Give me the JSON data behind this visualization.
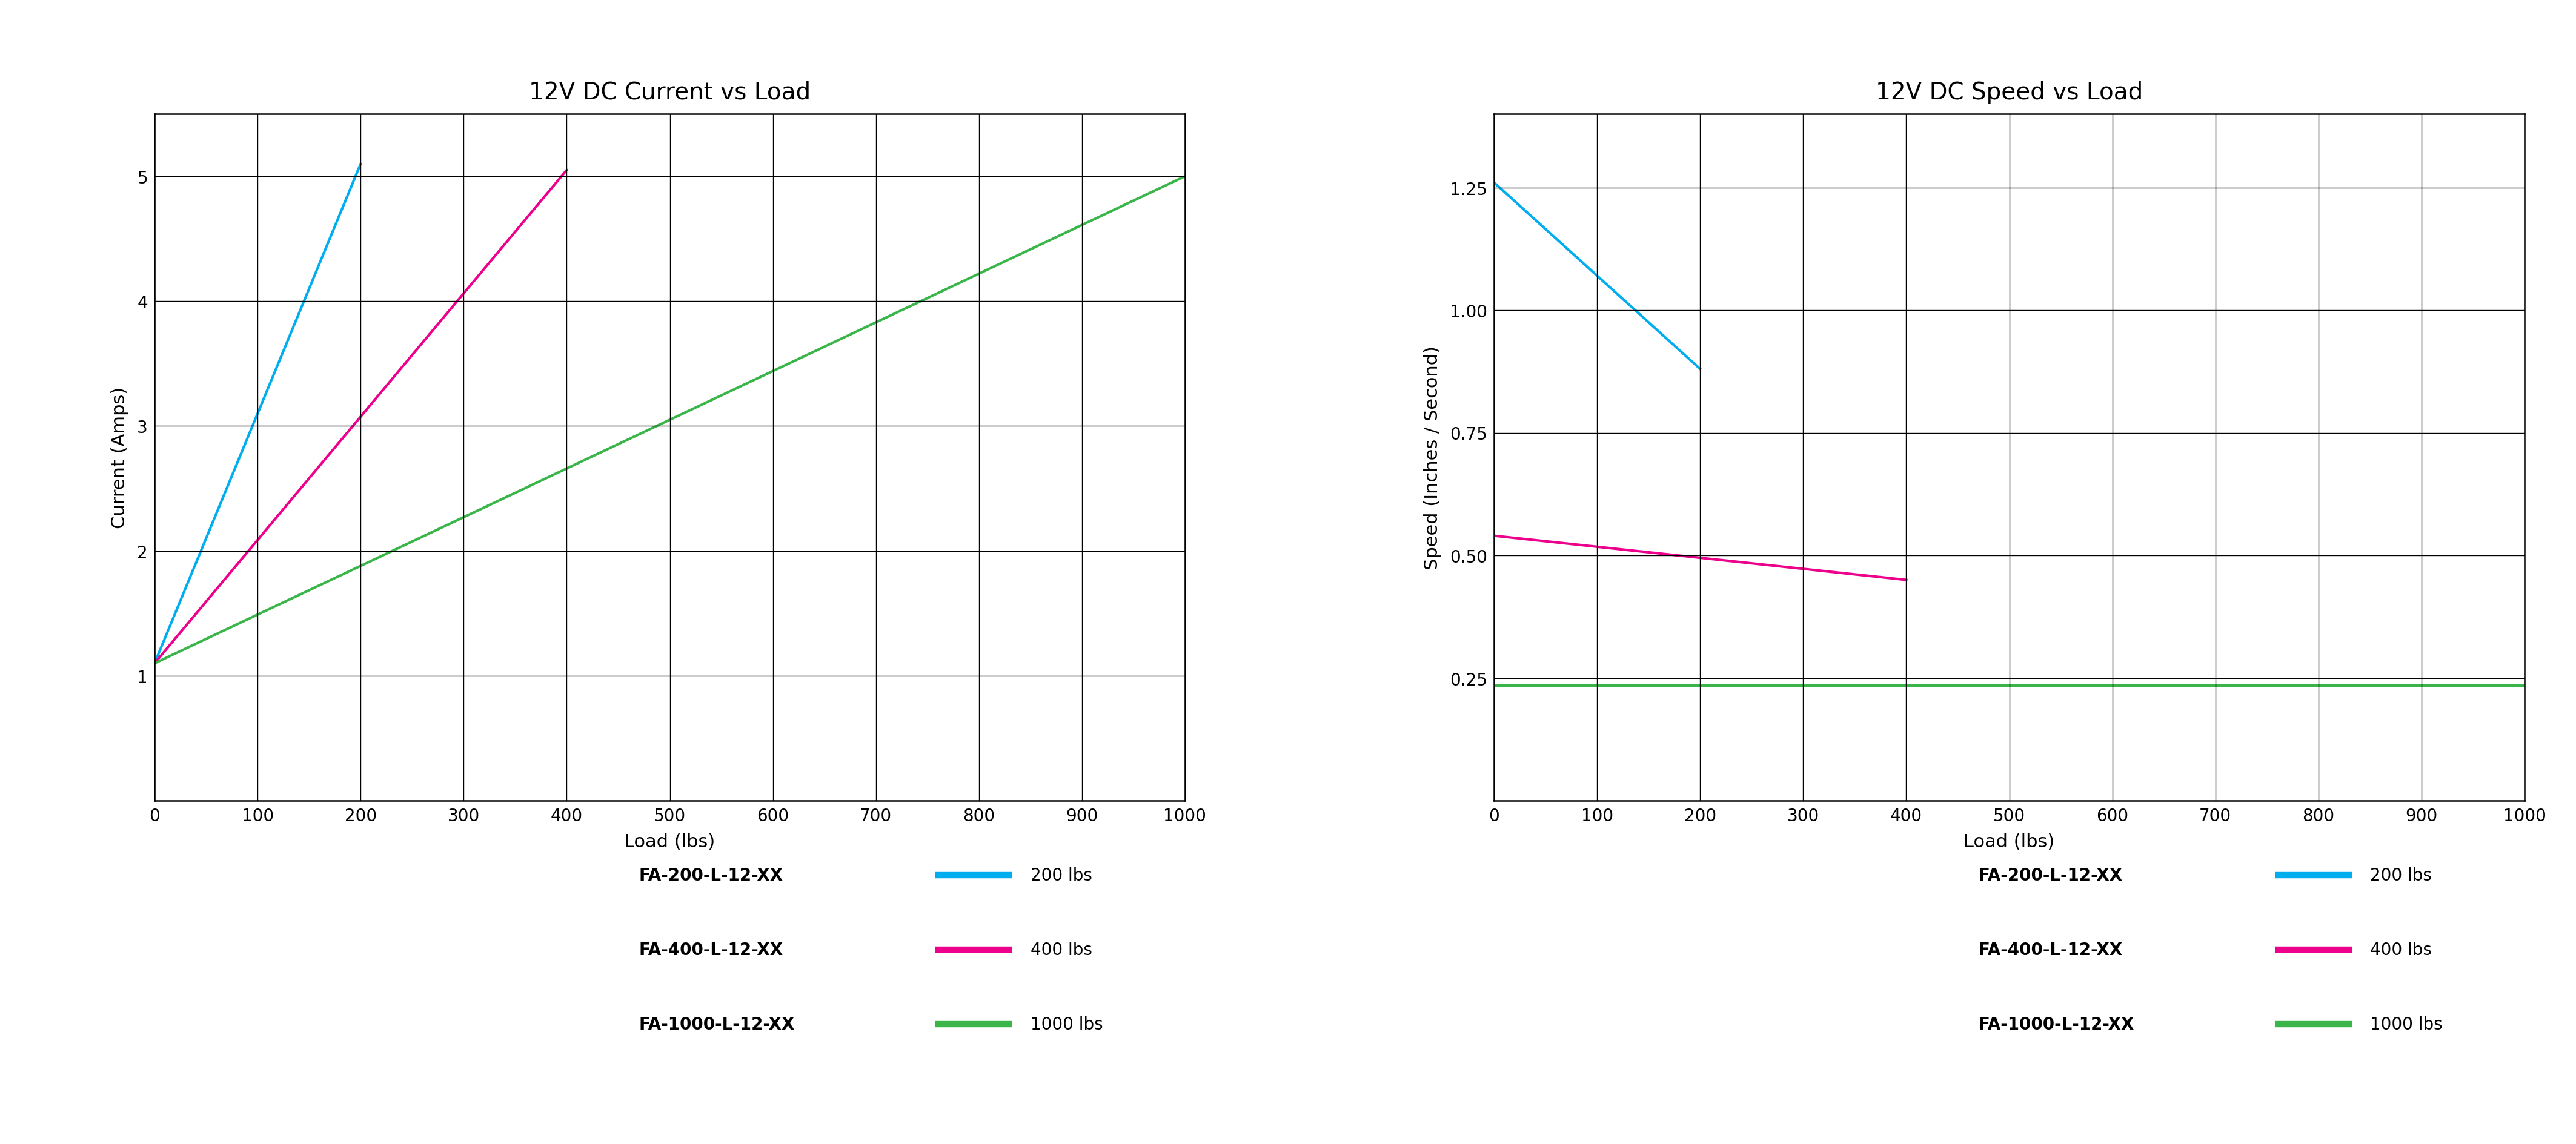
{
  "left_title": "12V DC Current vs Load",
  "right_title": "12V DC Speed vs Load",
  "left_xlabel": "Load (lbs)",
  "right_xlabel": "Load (lbs)",
  "left_ylabel": "Current (Amps)",
  "right_ylabel": "Speed (Inches / Second)",
  "current_lines": [
    {
      "label_bold": "FA-200-L-12-XX",
      "label_light": "200 lbs",
      "color": "#00AEEF",
      "x": [
        0,
        200
      ],
      "y": [
        1.1,
        5.1
      ]
    },
    {
      "label_bold": "FA-400-L-12-XX",
      "label_light": "400 lbs",
      "color": "#EC008C",
      "x": [
        0,
        400
      ],
      "y": [
        1.1,
        5.05
      ]
    },
    {
      "label_bold": "FA-1000-L-12-XX",
      "label_light": "1000 lbs",
      "color": "#39B54A",
      "x": [
        0,
        1000
      ],
      "y": [
        1.1,
        5.0
      ]
    }
  ],
  "speed_lines": [
    {
      "label_bold": "FA-200-L-12-XX",
      "label_light": "200 lbs",
      "color": "#00AEEF",
      "x": [
        0,
        200
      ],
      "y": [
        1.26,
        0.88
      ]
    },
    {
      "label_bold": "FA-400-L-12-XX",
      "label_light": "400 lbs",
      "color": "#EC008C",
      "x": [
        0,
        400
      ],
      "y": [
        0.54,
        0.45
      ]
    },
    {
      "label_bold": "FA-1000-L-12-XX",
      "label_light": "1000 lbs",
      "color": "#39B54A",
      "x": [
        0,
        1000
      ],
      "y": [
        0.235,
        0.235
      ]
    }
  ],
  "xlim": [
    0,
    1000
  ],
  "xticks": [
    0,
    100,
    200,
    300,
    400,
    500,
    600,
    700,
    800,
    900,
    1000
  ],
  "current_ylim": [
    0,
    5.5
  ],
  "current_yticks": [
    1.0,
    2.0,
    3.0,
    4.0,
    5.0
  ],
  "speed_ylim": [
    0,
    1.4
  ],
  "speed_yticks": [
    0.25,
    0.5,
    0.75,
    1.0,
    1.25
  ],
  "background_color": "#FFFFFF",
  "grid_color": "#000000",
  "title_fontsize": 28,
  "label_fontsize": 22,
  "tick_fontsize": 20,
  "legend_bold_fontsize": 20,
  "legend_light_fontsize": 20,
  "line_width": 3.0
}
